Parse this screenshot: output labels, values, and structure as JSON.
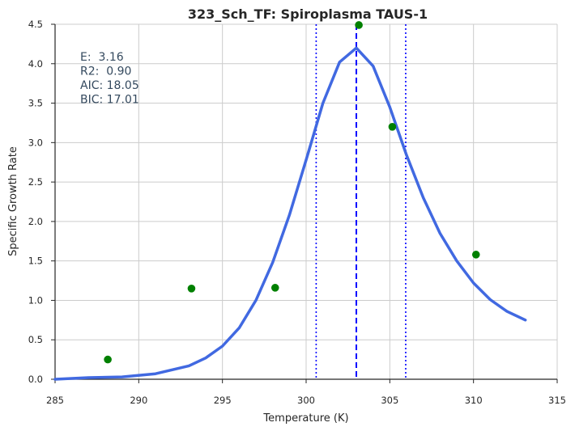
{
  "chart_data": {
    "type": "scatter",
    "title": "323_Sch_TF: Spiroplasma TAUS-1",
    "xlabel": "Temperature (K)",
    "ylabel": "Specific Growth Rate",
    "xlim": [
      285,
      315
    ],
    "ylim": [
      0.0,
      4.5
    ],
    "x_ticks": [
      "285",
      "290",
      "295",
      "300",
      "305",
      "310",
      "315"
    ],
    "y_ticks": [
      "0.0",
      "0.5",
      "1.0",
      "1.5",
      "2.0",
      "2.5",
      "3.0",
      "3.5",
      "4.0",
      "4.5"
    ],
    "grid": true,
    "annotations": [
      "E:  3.16",
      "R2:  0.90",
      "AIC: 18.05",
      "BIC: 17.01"
    ],
    "series": [
      {
        "kind": "points",
        "color": "#008000",
        "x": [
          288.15,
          293.15,
          298.15,
          303.15,
          305.15,
          310.15
        ],
        "y": [
          0.25,
          1.15,
          1.16,
          4.49,
          3.2,
          1.58
        ]
      },
      {
        "kind": "fit-curve",
        "color": "#4169e1",
        "x": [
          285,
          287,
          289,
          291,
          293,
          294,
          295,
          296,
          297,
          298,
          299,
          300,
          301,
          302,
          303,
          304,
          305,
          306,
          307,
          308,
          309,
          310,
          311,
          312,
          313.1
        ],
        "y": [
          0.0,
          0.02,
          0.03,
          0.07,
          0.17,
          0.27,
          0.42,
          0.65,
          1.0,
          1.48,
          2.08,
          2.78,
          3.5,
          4.02,
          4.2,
          3.97,
          3.45,
          2.84,
          2.3,
          1.85,
          1.5,
          1.22,
          1.01,
          0.86,
          0.75
        ]
      }
    ],
    "vlines": [
      {
        "x": 303.0,
        "style": "dashed",
        "color": "#0000ff"
      },
      {
        "x": 300.6,
        "style": "dotted",
        "color": "#0000ff"
      },
      {
        "x": 305.95,
        "style": "dotted",
        "color": "#0000ff"
      }
    ]
  }
}
